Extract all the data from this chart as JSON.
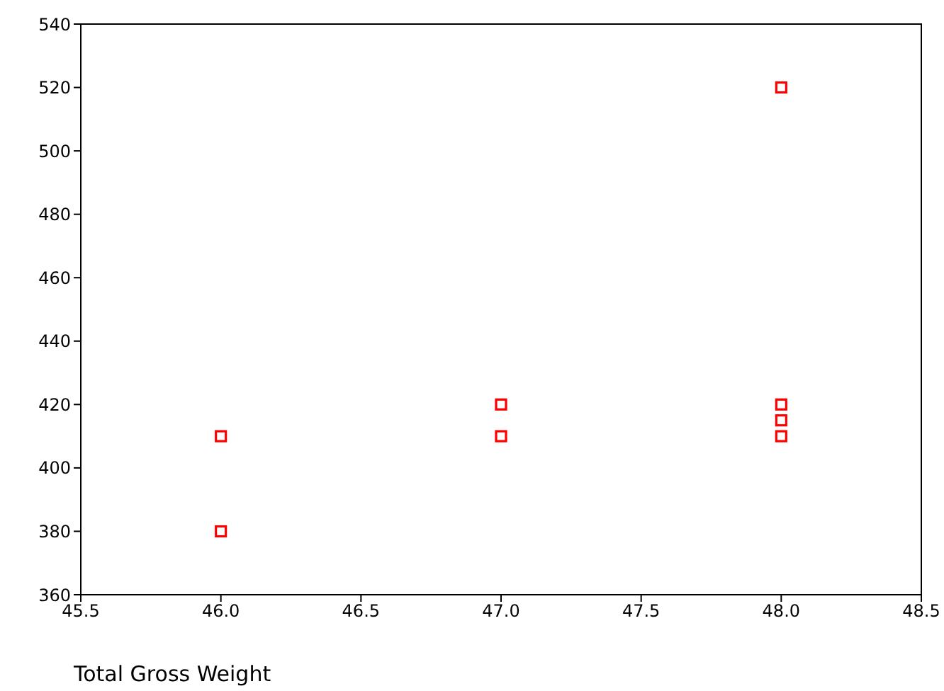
{
  "chart_data": {
    "type": "scatter",
    "xlabel": "Total Gross Weight",
    "x": [
      46,
      46,
      47,
      47,
      48,
      48,
      48,
      48
    ],
    "values": [
      410,
      380,
      420,
      410,
      520,
      420,
      415,
      410
    ],
    "color": "#ff0000",
    "marker": "square",
    "grid": false,
    "legend": false,
    "xlim": [
      45.5,
      48.5
    ],
    "xticks": [
      45.5,
      {
        "value": 46,
        "label": "46.0"
      },
      46.5,
      {
        "value": 47,
        "label": "47.0"
      },
      47.5,
      {
        "value": 48,
        "label": "48.0"
      },
      48.5
    ],
    "ylim": [
      360,
      540
    ],
    "yticks": [
      360,
      380,
      400,
      420,
      440,
      460,
      480,
      500,
      520,
      540
    ]
  }
}
